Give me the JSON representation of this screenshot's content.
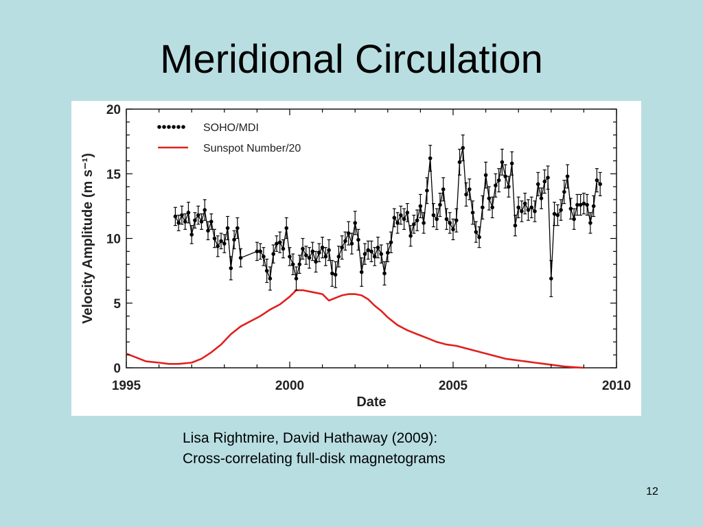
{
  "slide": {
    "title": "Meridional Circulation",
    "caption_line1": "Lisa Rightmire, David Hathaway (2009):",
    "caption_line2": "Cross-correlating full-disk magnetograms",
    "page_number": "12"
  },
  "chart_data": {
    "type": "line",
    "title": "",
    "xlabel": "Date",
    "ylabel": "Velocity Amplitude (m s⁻¹)",
    "xlim": [
      1995,
      2010
    ],
    "ylim": [
      0,
      20
    ],
    "xticks": [
      1995,
      2000,
      2005,
      2010
    ],
    "yticks": [
      0,
      5,
      10,
      15,
      20
    ],
    "grid": false,
    "legend_position": "top-left",
    "series": [
      {
        "name": "SOHO/MDI",
        "style": "markers-with-errorbars",
        "color": "#000000",
        "x": [
          1996.5,
          1996.6,
          1996.7,
          1996.8,
          1996.9,
          1997.0,
          1997.1,
          1997.2,
          1997.3,
          1997.4,
          1997.5,
          1997.6,
          1997.7,
          1997.8,
          1997.9,
          1998.0,
          1998.1,
          1998.2,
          1998.3,
          1998.4,
          1998.5,
          1999.0,
          1999.1,
          1999.2,
          1999.3,
          1999.4,
          1999.5,
          1999.6,
          1999.7,
          1999.8,
          1999.9,
          2000.0,
          2000.1,
          2000.2,
          2000.3,
          2000.4,
          2000.5,
          2000.6,
          2000.7,
          2000.8,
          2000.9,
          2001.0,
          2001.1,
          2001.2,
          2001.3,
          2001.4,
          2001.5,
          2001.6,
          2001.7,
          2001.8,
          2001.9,
          2002.0,
          2002.1,
          2002.2,
          2002.3,
          2002.4,
          2002.5,
          2002.6,
          2002.7,
          2002.8,
          2002.9,
          2003.0,
          2003.1,
          2003.2,
          2003.3,
          2003.4,
          2003.5,
          2003.6,
          2003.7,
          2003.8,
          2003.9,
          2004.0,
          2004.1,
          2004.2,
          2004.3,
          2004.4,
          2004.5,
          2004.6,
          2004.7,
          2004.8,
          2004.9,
          2005.0,
          2005.1,
          2005.2,
          2005.3,
          2005.4,
          2005.5,
          2005.6,
          2005.7,
          2005.8,
          2005.9,
          2006.0,
          2006.1,
          2006.2,
          2006.3,
          2006.4,
          2006.5,
          2006.6,
          2006.7,
          2006.8,
          2006.9,
          2007.0,
          2007.1,
          2007.2,
          2007.3,
          2007.4,
          2007.5,
          2007.6,
          2007.7,
          2007.8,
          2007.9,
          2008.0,
          2008.1,
          2008.2,
          2008.3,
          2008.4,
          2008.5,
          2008.6,
          2008.7,
          2008.8,
          2008.9,
          2009.0,
          2009.1,
          2009.2,
          2009.3,
          2009.4,
          2009.5
        ],
        "y": [
          11.7,
          11.2,
          11.8,
          11.3,
          12.0,
          10.3,
          11.4,
          11.8,
          11.3,
          12.2,
          10.6,
          11.3,
          10.0,
          9.4,
          9.8,
          9.6,
          10.8,
          7.7,
          9.9,
          10.8,
          8.5,
          9.0,
          9.0,
          8.6,
          7.5,
          6.9,
          8.8,
          9.6,
          9.7,
          9.2,
          10.8,
          8.6,
          8.0,
          6.9,
          8.0,
          9.2,
          8.7,
          8.5,
          9.0,
          8.2,
          8.9,
          9.3,
          8.6,
          9.1,
          7.3,
          7.2,
          8.6,
          9.3,
          9.8,
          10.4,
          9.6,
          11.2,
          9.9,
          7.4,
          8.8,
          9.1,
          9.0,
          8.6,
          9.3,
          8.8,
          7.3,
          8.9,
          9.7,
          11.6,
          11.2,
          11.8,
          11.5,
          12.0,
          10.2,
          11.1,
          11.4,
          12.5,
          11.2,
          13.7,
          16.2,
          11.8,
          11.5,
          12.6,
          13.8,
          11.5,
          11.2,
          10.7,
          11.4,
          15.9,
          17.0,
          13.4,
          13.8,
          12.0,
          10.5,
          10.1,
          12.4,
          14.9,
          13.1,
          12.4,
          14.1,
          14.5,
          15.9,
          14.8,
          14.0,
          15.8,
          11.0,
          12.4,
          12.1,
          12.7,
          12.2,
          12.4,
          12.1,
          14.2,
          13.1,
          14.4,
          14.7,
          6.9,
          11.9,
          11.8,
          12.2,
          13.6,
          14.8,
          12.3,
          11.5,
          12.6,
          12.6,
          12.7,
          12.6,
          11.2,
          12.5,
          14.5,
          14.2
        ],
        "yerr": [
          0.7,
          0.6,
          0.7,
          0.6,
          0.8,
          0.7,
          0.6,
          0.7,
          0.6,
          0.8,
          0.7,
          0.6,
          0.7,
          0.8,
          0.6,
          0.7,
          0.9,
          0.9,
          0.7,
          0.8,
          0.7,
          0.7,
          0.6,
          0.7,
          0.9,
          0.9,
          0.7,
          0.6,
          0.8,
          0.7,
          0.8,
          0.7,
          0.8,
          0.9,
          0.7,
          0.8,
          0.7,
          0.8,
          0.7,
          0.8,
          0.7,
          0.8,
          0.7,
          0.8,
          1.0,
          1.0,
          0.8,
          0.9,
          0.7,
          0.9,
          0.8,
          0.9,
          0.8,
          1.1,
          0.8,
          0.7,
          0.8,
          0.7,
          0.8,
          0.7,
          0.9,
          0.7,
          0.8,
          0.7,
          0.8,
          0.7,
          0.8,
          0.7,
          0.8,
          0.7,
          0.8,
          0.9,
          0.8,
          1.0,
          1.0,
          0.9,
          0.8,
          0.9,
          0.9,
          0.8,
          0.8,
          0.8,
          0.9,
          1.0,
          1.0,
          0.9,
          0.8,
          0.9,
          0.8,
          0.8,
          0.9,
          1.0,
          0.9,
          0.8,
          0.9,
          0.9,
          1.0,
          0.9,
          0.8,
          0.9,
          0.8,
          0.8,
          0.8,
          0.8,
          0.8,
          0.8,
          0.8,
          0.9,
          0.8,
          0.9,
          0.9,
          1.4,
          0.9,
          0.8,
          0.8,
          0.9,
          0.9,
          0.8,
          0.8,
          0.8,
          0.8,
          0.8,
          0.8,
          0.8,
          0.8,
          0.9,
          0.9
        ]
      },
      {
        "name": "Sunspot Number/20",
        "style": "line",
        "color": "#e0201c",
        "x": [
          1995.0,
          1995.3,
          1995.6,
          1996.0,
          1996.3,
          1996.6,
          1997.0,
          1997.3,
          1997.6,
          1997.9,
          1998.2,
          1998.5,
          1998.8,
          1999.1,
          1999.4,
          1999.7,
          2000.0,
          2000.2,
          2000.4,
          2000.6,
          2000.8,
          2001.0,
          2001.2,
          2001.4,
          2001.6,
          2001.8,
          2002.0,
          2002.2,
          2002.4,
          2002.6,
          2002.8,
          2003.0,
          2003.3,
          2003.6,
          2003.9,
          2004.2,
          2004.5,
          2004.8,
          2005.1,
          2005.4,
          2005.7,
          2006.0,
          2006.3,
          2006.6,
          2006.9,
          2007.2,
          2007.5,
          2007.8,
          2008.1,
          2008.4,
          2008.7,
          2009.0
        ],
        "y": [
          1.1,
          0.8,
          0.5,
          0.4,
          0.3,
          0.3,
          0.4,
          0.7,
          1.2,
          1.8,
          2.6,
          3.2,
          3.6,
          4.0,
          4.5,
          4.9,
          5.5,
          6.0,
          6.0,
          5.9,
          5.8,
          5.7,
          5.2,
          5.4,
          5.6,
          5.7,
          5.7,
          5.6,
          5.3,
          4.8,
          4.4,
          3.9,
          3.3,
          2.9,
          2.6,
          2.3,
          2.0,
          1.8,
          1.7,
          1.5,
          1.3,
          1.1,
          0.9,
          0.7,
          0.6,
          0.5,
          0.4,
          0.3,
          0.2,
          0.1,
          0.05,
          0.0
        ]
      }
    ]
  }
}
